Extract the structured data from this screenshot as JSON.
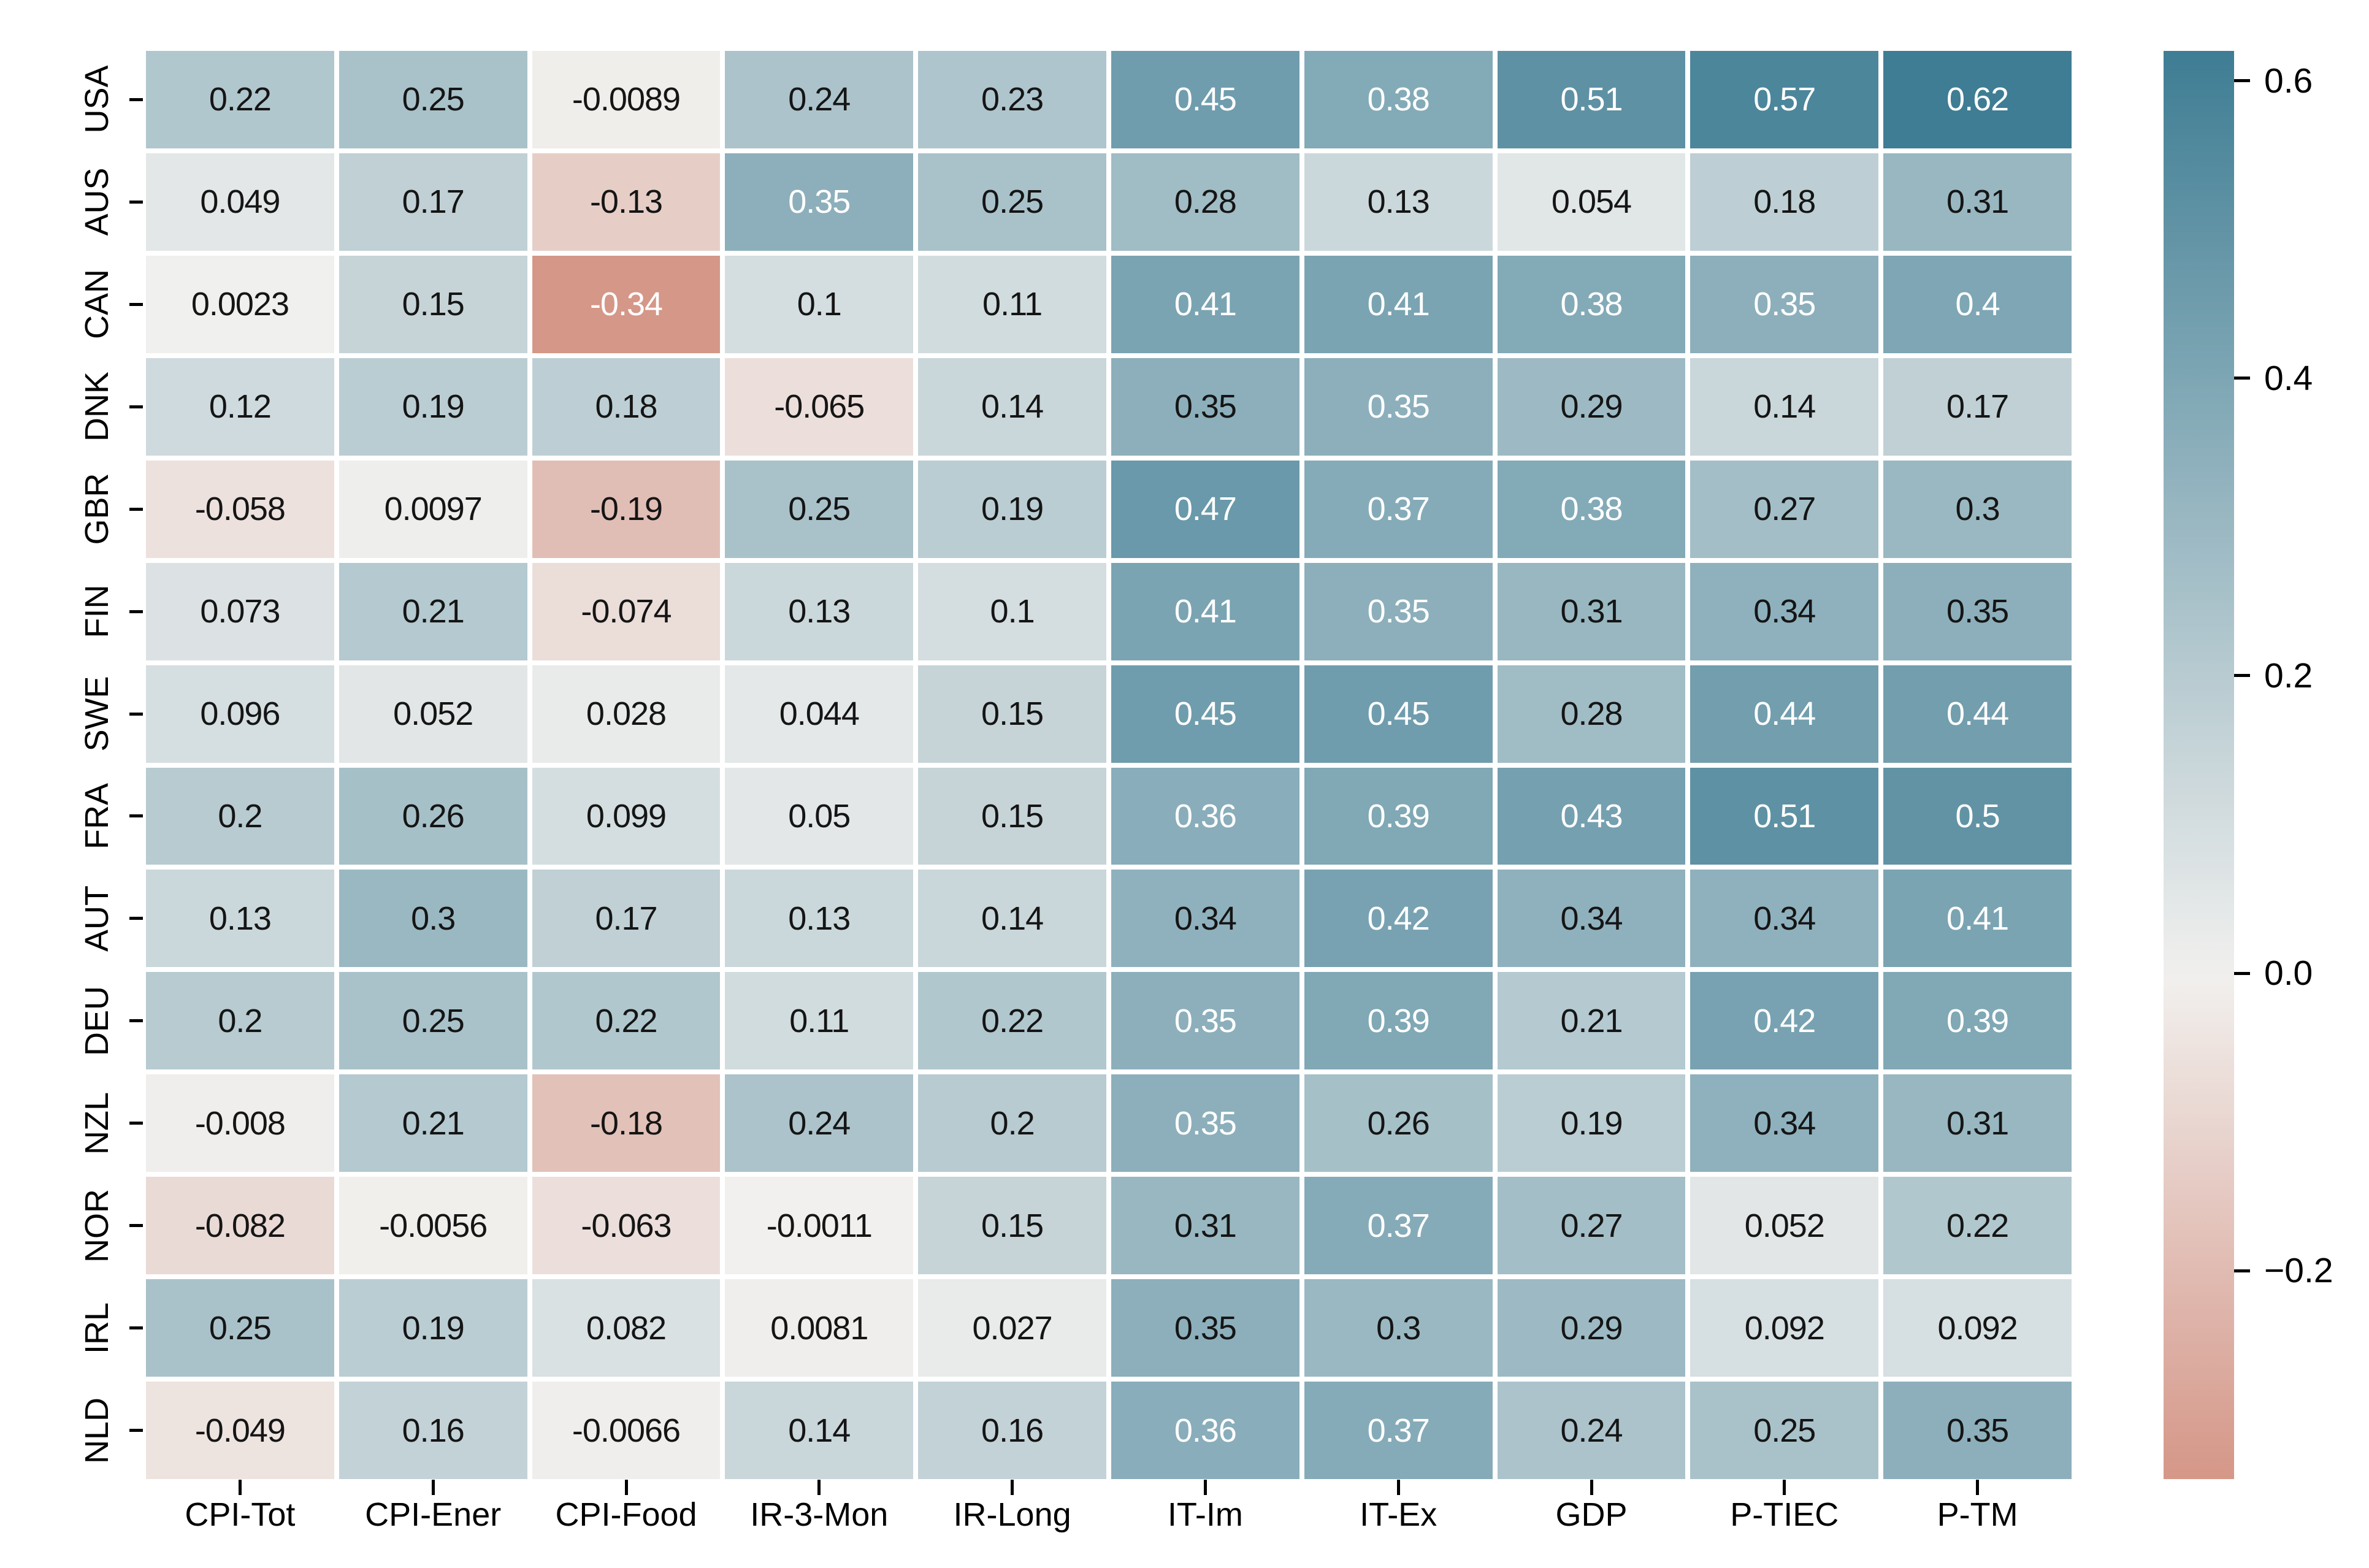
{
  "figure": {
    "background": "#ffffff"
  },
  "chart_data": {
    "type": "heatmap",
    "title": "",
    "xlabel": "",
    "ylabel": "",
    "grid": "white-gaps-between-cells",
    "legend_position": "colorbar-right",
    "rows": [
      "USA",
      "AUS",
      "CAN",
      "DNK",
      "GBR",
      "FIN",
      "SWE",
      "FRA",
      "AUT",
      "DEU",
      "NZL",
      "NOR",
      "IRL",
      "NLD"
    ],
    "columns": [
      "CPI-Tot",
      "CPI-Ener",
      "CPI-Food",
      "IR-3-Mon",
      "IR-Long",
      "IT-Im",
      "IT-Ex",
      "GDP",
      "P-TIEC",
      "P-TM"
    ],
    "values": [
      [
        0.22,
        0.25,
        -0.0089,
        0.24,
        0.23,
        0.45,
        0.38,
        0.51,
        0.57,
        0.62
      ],
      [
        0.049,
        0.17,
        -0.13,
        0.35,
        0.25,
        0.28,
        0.13,
        0.054,
        0.18,
        0.31
      ],
      [
        0.0023,
        0.15,
        -0.34,
        0.1,
        0.11,
        0.41,
        0.41,
        0.38,
        0.35,
        0.4
      ],
      [
        0.12,
        0.19,
        0.18,
        -0.065,
        0.14,
        0.35,
        0.35,
        0.29,
        0.14,
        0.17
      ],
      [
        -0.058,
        0.0097,
        -0.19,
        0.25,
        0.19,
        0.47,
        0.37,
        0.38,
        0.27,
        0.3
      ],
      [
        0.073,
        0.21,
        -0.074,
        0.13,
        0.1,
        0.41,
        0.35,
        0.31,
        0.34,
        0.35
      ],
      [
        0.096,
        0.052,
        0.028,
        0.044,
        0.15,
        0.45,
        0.45,
        0.28,
        0.44,
        0.44
      ],
      [
        0.2,
        0.26,
        0.099,
        0.05,
        0.15,
        0.36,
        0.39,
        0.43,
        0.51,
        0.5
      ],
      [
        0.13,
        0.3,
        0.17,
        0.13,
        0.14,
        0.34,
        0.42,
        0.34,
        0.34,
        0.41
      ],
      [
        0.2,
        0.25,
        0.22,
        0.11,
        0.22,
        0.35,
        0.39,
        0.21,
        0.42,
        0.39
      ],
      [
        -0.008,
        0.21,
        -0.18,
        0.24,
        0.2,
        0.35,
        0.26,
        0.19,
        0.34,
        0.31
      ],
      [
        -0.082,
        -0.0056,
        -0.063,
        -0.0011,
        0.15,
        0.31,
        0.37,
        0.27,
        0.052,
        0.22
      ],
      [
        0.25,
        0.19,
        0.082,
        0.0081,
        0.027,
        0.35,
        0.3,
        0.29,
        0.092,
        0.092
      ],
      [
        -0.049,
        0.16,
        -0.0066,
        0.14,
        0.16,
        0.36,
        0.37,
        0.24,
        0.25,
        0.35
      ]
    ],
    "colorbar": {
      "vmin": -0.34,
      "vmax": 0.62,
      "ticks": [
        0.6,
        0.4,
        0.2,
        0.0,
        -0.2
      ],
      "tick_labels": [
        "0.6",
        "0.4",
        "0.2",
        "0.0",
        "−0.2"
      ]
    },
    "colormap": {
      "type": "diverging",
      "center_value": 0,
      "extent": 0.62,
      "positive_end": "#3e7d94",
      "center": "#f1f0ee",
      "negative_end": "#be4d34"
    },
    "annotation_text_colors": {
      "dark": "#151515",
      "light": "#ffffff"
    },
    "white_text_rule": {
      "min_positive": 0.35,
      "max_negative": -0.3
    },
    "dark_text_exceptions": [
      [
        3,
        5
      ],
      [
        5,
        9
      ],
      [
        12,
        5
      ],
      [
        13,
        9
      ]
    ]
  }
}
